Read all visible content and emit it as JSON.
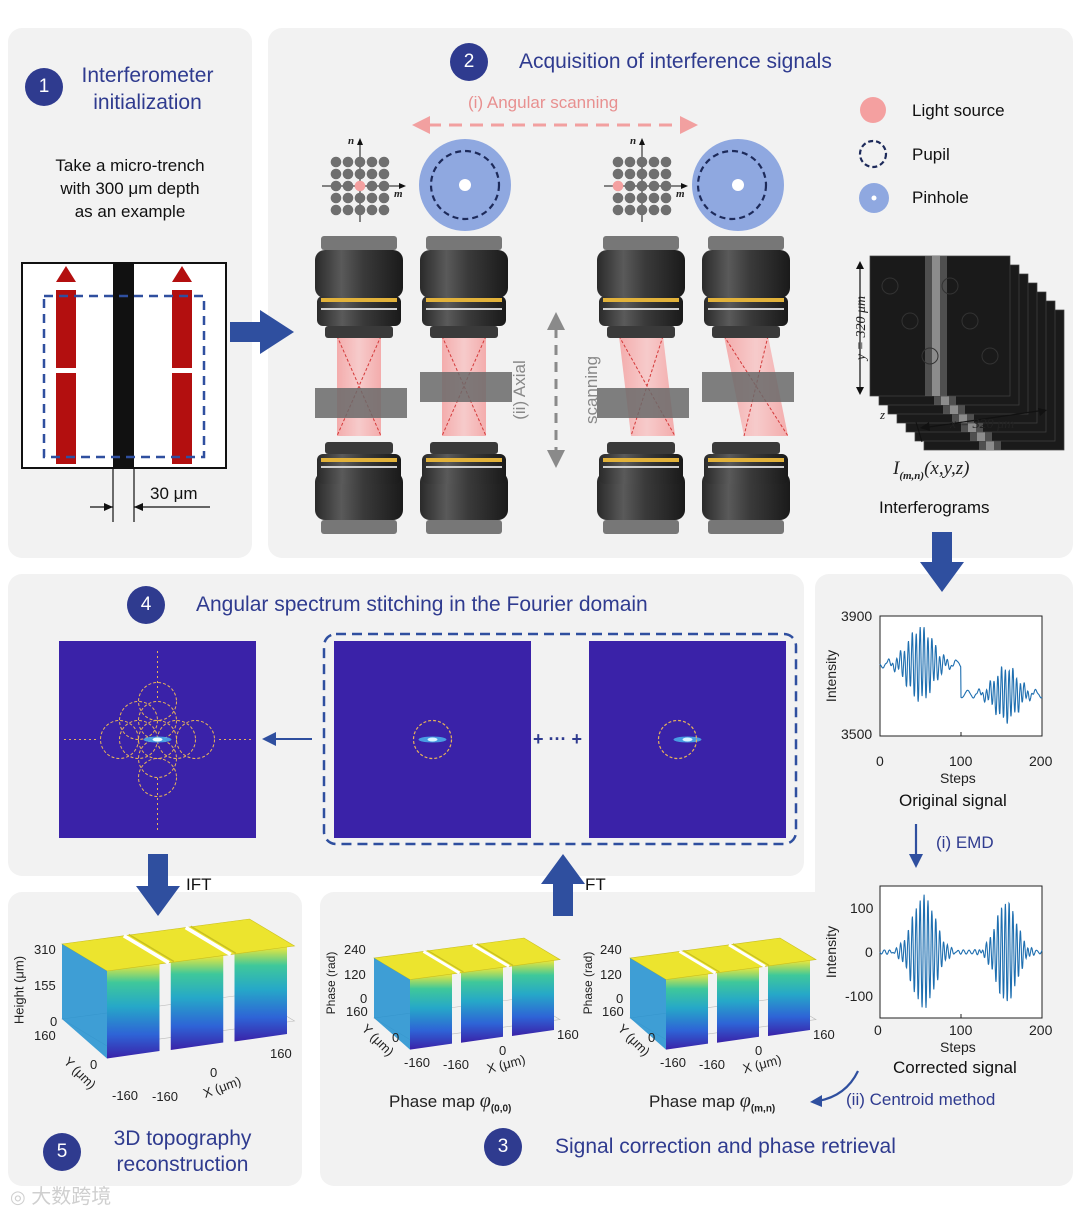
{
  "step1": {
    "number": "1",
    "title_line1": "Interferometer",
    "title_line2": "initialization",
    "desc_line1": "Take a micro-trench",
    "desc_line2": "with 300 μm depth",
    "desc_line3": "as an example",
    "width_label": "30 μm"
  },
  "step2": {
    "number": "2",
    "title": "Acquisition of interference signals",
    "angular_label": "(i) Angular scanning",
    "axial_label_1": "(ii) Axial",
    "axial_label_2": "scanning",
    "axis_n": "n",
    "axis_m": "m",
    "legend": {
      "light_source": "Light source",
      "pupil": "Pupil",
      "pinhole": "Pinhole"
    },
    "stack_y_label": "y = 320 μm",
    "stack_x_label": "x = 320 μm",
    "stack_z_label": "z",
    "formula": "I(m,n)(x,y,z)",
    "formula_main": "I",
    "formula_sub": "(m,n)",
    "formula_args": "(x,y,z)",
    "interferograms_label": "Interferograms"
  },
  "step4": {
    "number": "4",
    "title": "Angular spectrum stitching in the Fourier domain",
    "ellipsis": "+ ··· +",
    "ift_label": "IFT",
    "ft_label": "FT"
  },
  "signals": {
    "original": {
      "caption": "Original signal",
      "ylabel": "Intensity",
      "xlabel": "Steps",
      "y_ticks": [
        "3900",
        "3500"
      ],
      "x_ticks": [
        "0",
        "100",
        "200"
      ]
    },
    "emd_label": "(i) EMD",
    "corrected": {
      "caption": "Corrected signal",
      "ylabel": "Intensity",
      "xlabel": "Steps",
      "y_ticks": [
        "100",
        "0",
        "-100"
      ],
      "x_ticks": [
        "0",
        "100",
        "200"
      ]
    },
    "centroid_label": "(ii) Centroid method"
  },
  "step3": {
    "number": "3",
    "title": "Signal correction and phase retrieval",
    "phase1_caption": "Phase map",
    "phase1_symbol": "φ",
    "phase1_sub": "(0,0)",
    "phase2_caption": "Phase map",
    "phase2_symbol": "φ",
    "phase2_sub": "(m,n)",
    "zlabel": "Phase (rad)",
    "z_ticks": [
      "240",
      "120",
      "0"
    ],
    "y_label": "Y (μm)",
    "x_label": "X (μm)",
    "y_ticks": [
      "160",
      "0",
      "-160"
    ],
    "x_ticks": [
      "-160",
      "0",
      "160"
    ]
  },
  "step5": {
    "number": "5",
    "title_line1": "3D topography",
    "title_line2": "reconstruction",
    "zlabel": "Height (μm)",
    "z_ticks": [
      "310",
      "155",
      "0"
    ],
    "y_label": "Y (μm)",
    "x_label": "X (μm)",
    "y_ticks": [
      "160",
      "0",
      "-160"
    ],
    "x_ticks": [
      "-160",
      "0",
      "160"
    ]
  },
  "watermark": "大数跨境",
  "colors": {
    "navy": "#2f3b8f",
    "panel": "#f2f2f2",
    "pink": "#f29a9a",
    "pupil_blue": "#8fa8e0",
    "spectrum_bg": "#3a22a8",
    "trench_red": "#b30f0f"
  }
}
